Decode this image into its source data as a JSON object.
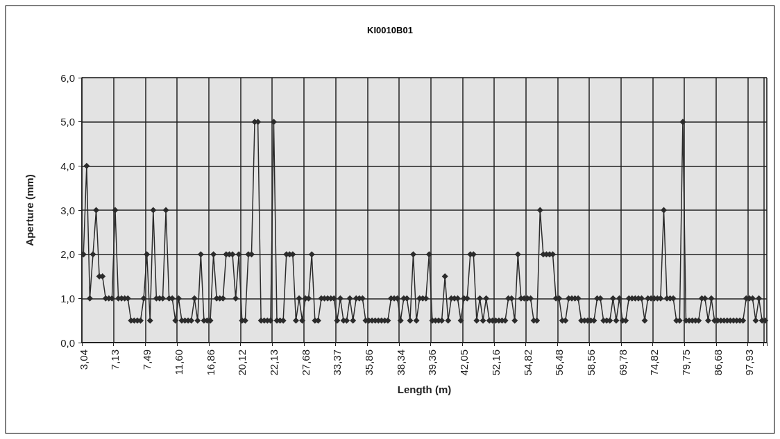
{
  "chart_data": {
    "type": "line",
    "title": "KI0010B01",
    "xlabel": "Length (m)",
    "ylabel": "Aperture (mm)",
    "categories": [
      "3,04",
      null,
      null,
      null,
      null,
      null,
      null,
      null,
      null,
      null,
      "7,13",
      null,
      null,
      null,
      null,
      null,
      null,
      null,
      null,
      null,
      "7,49",
      null,
      null,
      null,
      null,
      null,
      null,
      null,
      null,
      null,
      "11,60",
      null,
      null,
      null,
      null,
      null,
      null,
      null,
      null,
      null,
      "16,86",
      null,
      null,
      null,
      null,
      null,
      null,
      null,
      null,
      null,
      "20,12",
      null,
      null,
      null,
      null,
      null,
      null,
      null,
      null,
      null,
      "22,13",
      null,
      null,
      null,
      null,
      null,
      null,
      null,
      null,
      null,
      "27,68",
      null,
      null,
      null,
      null,
      null,
      null,
      null,
      null,
      null,
      "33,37",
      null,
      null,
      null,
      null,
      null,
      null,
      null,
      null,
      null,
      "35,86",
      null,
      null,
      null,
      null,
      null,
      null,
      null,
      null,
      null,
      "38,34",
      null,
      null,
      null,
      null,
      null,
      null,
      null,
      null,
      null,
      "39,36",
      null,
      null,
      null,
      null,
      null,
      null,
      null,
      null,
      null,
      "42,05",
      null,
      null,
      null,
      null,
      null,
      null,
      null,
      null,
      null,
      "52,16",
      null,
      null,
      null,
      null,
      null,
      null,
      null,
      null,
      null,
      "54,82",
      null,
      null,
      null,
      null,
      null,
      null,
      null,
      null,
      null,
      "56,48",
      null,
      null,
      null,
      null,
      null,
      null,
      null,
      null,
      null,
      "58,56",
      null,
      null,
      null,
      null,
      null,
      null,
      null,
      null,
      null,
      "69,78",
      null,
      null,
      null,
      null,
      null,
      null,
      null,
      null,
      null,
      "74,82",
      null,
      null,
      null,
      null,
      null,
      null,
      null,
      null,
      null,
      "79,75",
      null,
      null,
      null,
      null,
      null,
      null,
      null,
      null,
      null,
      "86,68",
      null,
      null,
      null,
      null,
      null,
      null,
      null,
      null,
      null,
      "97,93",
      null,
      null,
      null,
      null,
      null
    ],
    "series": [
      {
        "color": "#2b2b2b",
        "values": [
          2,
          4,
          1,
          2,
          3,
          1.5,
          1.5,
          1,
          1,
          1,
          3,
          1,
          1,
          1,
          1,
          0.5,
          0.5,
          0.5,
          0.5,
          1,
          2,
          0.5,
          3,
          1,
          1,
          1,
          3,
          1,
          1,
          0.5,
          1,
          0.5,
          0.5,
          0.5,
          0.5,
          1,
          0.5,
          2,
          0.5,
          0.5,
          0.5,
          2,
          1,
          1,
          1,
          2,
          2,
          2,
          1,
          2,
          0.5,
          0.5,
          2,
          2,
          5,
          5,
          0.5,
          0.5,
          0.5,
          0.5,
          5,
          0.5,
          0.5,
          0.5,
          2,
          2,
          2,
          0.5,
          1,
          0.5,
          1,
          1,
          2,
          0.5,
          0.5,
          1,
          1,
          1,
          1,
          1,
          0.5,
          1,
          0.5,
          0.5,
          1,
          0.5,
          1,
          1,
          1,
          0.5,
          0.5,
          0.5,
          0.5,
          0.5,
          0.5,
          0.5,
          0.5,
          1,
          1,
          1,
          0.5,
          1,
          1,
          0.5,
          2,
          0.5,
          1,
          1,
          1,
          2,
          0.5,
          0.5,
          0.5,
          0.5,
          1.5,
          0.5,
          1,
          1,
          1,
          0.5,
          1,
          1,
          2,
          2,
          0.5,
          1,
          0.5,
          1,
          0.5,
          0.5,
          0.5,
          0.5,
          0.5,
          0.5,
          1,
          1,
          0.5,
          2,
          1,
          1,
          1,
          1,
          0.5,
          0.5,
          3,
          2,
          2,
          2,
          2,
          1,
          1,
          0.5,
          0.5,
          1,
          1,
          1,
          1,
          0.5,
          0.5,
          0.5,
          0.5,
          0.5,
          1,
          1,
          0.5,
          0.5,
          0.5,
          1,
          0.5,
          1,
          0.5,
          0.5,
          1,
          1,
          1,
          1,
          1,
          0.5,
          1,
          1,
          1,
          1,
          1,
          3,
          1,
          1,
          1,
          0.5,
          0.5,
          5,
          0.5,
          0.5,
          0.5,
          0.5,
          0.5,
          1,
          1,
          0.5,
          1,
          0.5,
          0.5,
          0.5,
          0.5,
          0.5,
          0.5,
          0.5,
          0.5,
          0.5,
          0.5,
          1,
          1,
          1,
          0.5,
          1,
          0.5,
          0.5
        ]
      }
    ],
    "ylim": [
      0,
      6
    ],
    "yticks": [
      {
        "value": 0,
        "label": "0,0"
      },
      {
        "value": 1,
        "label": "1,0"
      },
      {
        "value": 2,
        "label": "2,0"
      },
      {
        "value": 3,
        "label": "3,0"
      },
      {
        "value": 4,
        "label": "4,0"
      },
      {
        "value": 5,
        "label": "5,0"
      },
      {
        "value": 6,
        "label": "6,0"
      }
    ],
    "grid": true,
    "marker": "diamond",
    "line_style": "solid"
  }
}
